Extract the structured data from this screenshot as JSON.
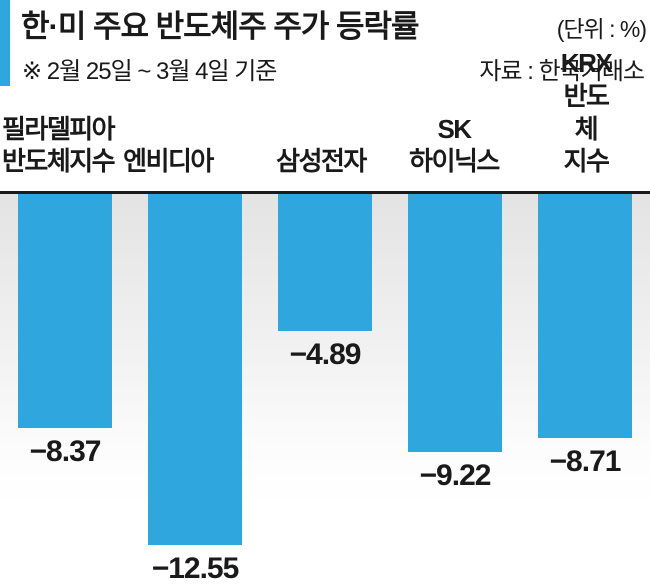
{
  "header": {
    "title": "한·미 주요 반도체주 주가 등락률",
    "unit": "(단위 : %)",
    "period": "※ 2월 25일 ~ 3월 4일 기준",
    "source": "자료 : 한국거래소"
  },
  "chart_data": {
    "type": "bar",
    "title": "한·미 주요 반도체주 주가 등락률",
    "unit": "%",
    "categories": [
      "필라델피아 반도체지수",
      "엔비디아",
      "삼성전자",
      "SK 하이닉스",
      "KRX반도체 지수"
    ],
    "category_lines": [
      [
        "필라델피아",
        "반도체지수"
      ],
      [
        "엔비디아"
      ],
      [
        "삼성전자"
      ],
      [
        "SK",
        "하이닉스"
      ],
      [
        "KRX반도체",
        "지수"
      ]
    ],
    "values": [
      -8.37,
      -12.55,
      -4.89,
      -9.22,
      -8.71
    ],
    "value_labels": [
      "−8.37",
      "−12.55",
      "−4.89",
      "−9.22",
      "−8.71"
    ],
    "baseline": 0,
    "ylim": [
      -13.5,
      0
    ],
    "grid": false,
    "legend": false,
    "bar_color": "#2FA7DE",
    "baseline_color": "#1B1B1B",
    "bar_direction": "down"
  },
  "colors": {
    "accent": "#2FA7DE",
    "text": "#1A1A1A",
    "plot_top": "#E3E3E3",
    "plot_bottom": "#FFFFFF"
  }
}
